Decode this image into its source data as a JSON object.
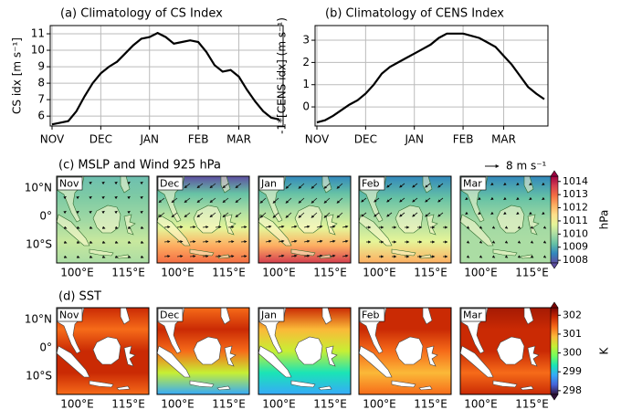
{
  "chart_data": [
    {
      "type": "line",
      "title": "(a) Climatology of CS Index",
      "ylabel": "CS idx [m s⁻¹]",
      "categories": [
        "NOV",
        null,
        null,
        null,
        null,
        null,
        "DEC",
        null,
        null,
        null,
        null,
        null,
        "JAN",
        null,
        null,
        null,
        null,
        null,
        "FEB",
        null,
        null,
        null,
        null,
        "MAR",
        null,
        null,
        null,
        null,
        null
      ],
      "values": [
        5.5,
        5.6,
        5.7,
        6.3,
        7.2,
        8.0,
        8.6,
        9.0,
        9.3,
        9.8,
        10.3,
        10.7,
        10.8,
        11.05,
        10.8,
        10.4,
        10.5,
        10.6,
        10.5,
        9.9,
        9.1,
        8.7,
        8.8,
        8.4,
        7.6,
        6.9,
        6.3,
        5.9,
        5.8
      ],
      "color": "#000000",
      "ylim": [
        5.4,
        11.5
      ],
      "yticks": [
        6,
        7,
        8,
        9,
        10,
        11
      ],
      "grid": true
    },
    {
      "type": "line",
      "title": "(b) Climatology of CENS Index",
      "ylabel": "-1*[CENS idx] (m s⁻¹)",
      "categories": [
        "NOV",
        null,
        null,
        null,
        null,
        null,
        "DEC",
        null,
        null,
        null,
        null,
        null,
        "JAN",
        null,
        null,
        null,
        null,
        null,
        "FEB",
        null,
        null,
        null,
        null,
        "MAR",
        null,
        null,
        null,
        null,
        null
      ],
      "values": [
        -0.7,
        -0.6,
        -0.4,
        -0.15,
        0.1,
        0.3,
        0.6,
        1.0,
        1.5,
        1.8,
        2.0,
        2.2,
        2.4,
        2.6,
        2.8,
        3.1,
        3.3,
        3.3,
        3.3,
        3.2,
        3.1,
        2.9,
        2.7,
        2.3,
        1.9,
        1.4,
        0.9,
        0.6,
        0.35
      ],
      "color": "#000000",
      "ylim": [
        -0.86,
        3.66
      ],
      "yticks": [
        0,
        1,
        2,
        3
      ],
      "grid": true
    },
    {
      "type": "map",
      "title": "(c) MSLP and Wind 925 hPa",
      "reference_label": "8 m s⁻¹",
      "panels": [
        "Nov",
        "Dec",
        "Jan",
        "Feb",
        "Mar"
      ],
      "lat_lim": [
        -16.5,
        14.2
      ],
      "lon_lim": [
        94,
        121
      ],
      "lat_ticks": [
        {
          "value": 10,
          "label": "10°N"
        },
        {
          "value": 0,
          "label": "0°"
        },
        {
          "value": -10,
          "label": "10°S"
        }
      ],
      "lon_ticks": [
        {
          "value": 100,
          "label": "100°E"
        },
        {
          "value": 115,
          "label": "115°E"
        }
      ],
      "colorbar": {
        "label": "hPa",
        "lim": [
          1007.8,
          1014.4
        ],
        "ticks": [
          1008,
          1009,
          1010,
          1011,
          1012,
          1013,
          1014
        ]
      }
    },
    {
      "type": "map",
      "title": "(d) SST",
      "panels": [
        "Nov",
        "Dec",
        "Jan",
        "Feb",
        "Mar"
      ],
      "lat_lim": [
        -16.5,
        14.2
      ],
      "lon_lim": [
        94,
        121
      ],
      "lat_ticks": [
        {
          "value": 10,
          "label": "10°N"
        },
        {
          "value": 0,
          "label": "0°"
        },
        {
          "value": -10,
          "label": "10°S"
        }
      ],
      "lon_ticks": [
        {
          "value": 100,
          "label": "100°E"
        },
        {
          "value": 115,
          "label": "115°E"
        }
      ],
      "colorbar": {
        "label": "K",
        "lim": [
          297.8,
          302.4
        ],
        "ticks": [
          298,
          299,
          300,
          301,
          302
        ]
      }
    }
  ]
}
